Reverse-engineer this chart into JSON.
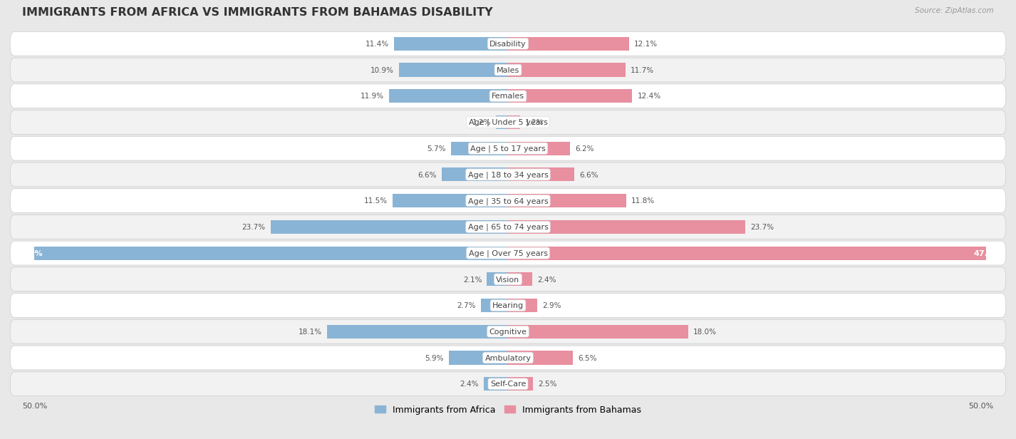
{
  "title": "IMMIGRANTS FROM AFRICA VS IMMIGRANTS FROM BAHAMAS DISABILITY",
  "source": "Source: ZipAtlas.com",
  "categories": [
    "Disability",
    "Males",
    "Females",
    "Age | Under 5 years",
    "Age | 5 to 17 years",
    "Age | 18 to 34 years",
    "Age | 35 to 64 years",
    "Age | 65 to 74 years",
    "Age | Over 75 years",
    "Vision",
    "Hearing",
    "Cognitive",
    "Ambulatory",
    "Self-Care"
  ],
  "africa_values": [
    11.4,
    10.9,
    11.9,
    1.2,
    5.7,
    6.6,
    11.5,
    23.7,
    47.3,
    2.1,
    2.7,
    18.1,
    5.9,
    2.4
  ],
  "bahamas_values": [
    12.1,
    11.7,
    12.4,
    1.2,
    6.2,
    6.6,
    11.8,
    23.7,
    47.7,
    2.4,
    2.9,
    18.0,
    6.5,
    2.5
  ],
  "africa_color": "#8ab4d5",
  "bahamas_color": "#e88fa0",
  "africa_label": "Immigrants from Africa",
  "bahamas_label": "Immigrants from Bahamas",
  "max_val": 50.0,
  "fig_bg": "#e8e8e8",
  "row_colors": [
    "#ffffff",
    "#f2f2f2"
  ],
  "title_fontsize": 11.5,
  "label_fontsize": 8.0,
  "value_fontsize": 7.5,
  "bar_height": 0.52
}
